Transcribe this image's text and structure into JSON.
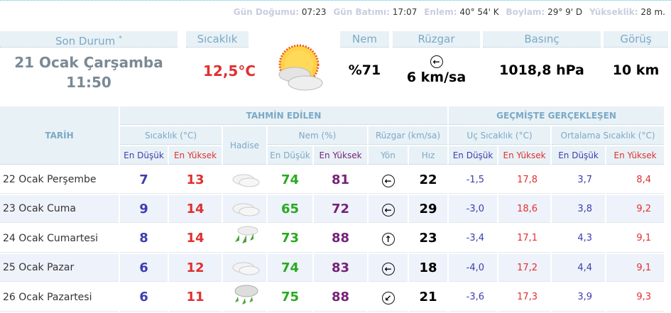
{
  "info": [
    {
      "k": "Gün Doğumu:",
      "v": "07:23"
    },
    {
      "k": "Gün Batımı:",
      "v": "17:07"
    },
    {
      "k": "Enlem:",
      "v": "40° 54' K"
    },
    {
      "k": "Boylam:",
      "v": "29° 9' D"
    },
    {
      "k": "Yükseklik:",
      "v": "28 m."
    }
  ],
  "current": {
    "son_durum_label": "Son Durum",
    "asterisk": "*",
    "date": "21 Ocak Çarşamba",
    "time": "11:50",
    "temp_label": "Sıcaklık",
    "temp": "12,5°C",
    "icon": "partly-cloudy-sun-icon",
    "nem_label": "Nem",
    "nem": "%71",
    "wind_label": "Rüzgar",
    "wind_dir": "←",
    "wind": "6 km/sa",
    "pressure_label": "Basınç",
    "pressure": "1018,8 hPa",
    "vis_label": "Görüş",
    "vis": "10 km"
  },
  "table": {
    "tarih": "TARİH",
    "tahmin": "TAHMİN EDİLEN",
    "gecmis": "GEÇMİŞTE GERÇEKLEŞEN",
    "sicaklik": "Sıcaklık (°C)",
    "hadise": "Hadise",
    "nem": "Nem (%)",
    "ruzgar": "Rüzgar (km/sa)",
    "uc": "Uç Sıcaklık (°C)",
    "ortalama": "Ortalama Sıcaklık (°C)",
    "low": "En Düşük",
    "high": "En Yüksek",
    "yon": "Yön",
    "hiz": "Hız"
  },
  "colors": {
    "low": "#3d3db0",
    "high": "#e03030",
    "nem_low": "#27aa1f",
    "nem_high": "#772277",
    "header_bg": "#e8f1f6",
    "header_text": "#7ba9c6"
  },
  "rows": [
    {
      "date": "22 Ocak Perşembe",
      "tlow": "7",
      "thigh": "13",
      "hadise": "cloudy-icon",
      "nlow": "74",
      "nhigh": "81",
      "dir": "←",
      "speed": "22",
      "ulow": "-1,5",
      "uhigh": "17,8",
      "olow": "3,7",
      "ohigh": "8,4"
    },
    {
      "date": "23 Ocak Cuma",
      "tlow": "9",
      "thigh": "14",
      "hadise": "cloudy-icon",
      "nlow": "65",
      "nhigh": "72",
      "dir": "←",
      "speed": "29",
      "ulow": "-3,0",
      "uhigh": "18,6",
      "olow": "3,8",
      "ohigh": "9,2"
    },
    {
      "date": "24 Ocak Cumartesi",
      "tlow": "8",
      "thigh": "14",
      "hadise": "rain-icon",
      "nlow": "73",
      "nhigh": "88",
      "dir": "↑",
      "speed": "23",
      "ulow": "-3,4",
      "uhigh": "17,1",
      "olow": "4,3",
      "ohigh": "9,1"
    },
    {
      "date": "25 Ocak Pazar",
      "tlow": "6",
      "thigh": "12",
      "hadise": "cloudy-icon",
      "nlow": "74",
      "nhigh": "83",
      "dir": "←",
      "speed": "18",
      "ulow": "-4,0",
      "uhigh": "17,2",
      "olow": "4,4",
      "ohigh": "9,1"
    },
    {
      "date": "26 Ocak Pazartesi",
      "tlow": "6",
      "thigh": "11",
      "hadise": "cloud-rain-icon",
      "nlow": "75",
      "nhigh": "88",
      "dir": "↙",
      "speed": "21",
      "ulow": "-3,6",
      "uhigh": "17,3",
      "olow": "3,9",
      "ohigh": "9,3"
    }
  ]
}
